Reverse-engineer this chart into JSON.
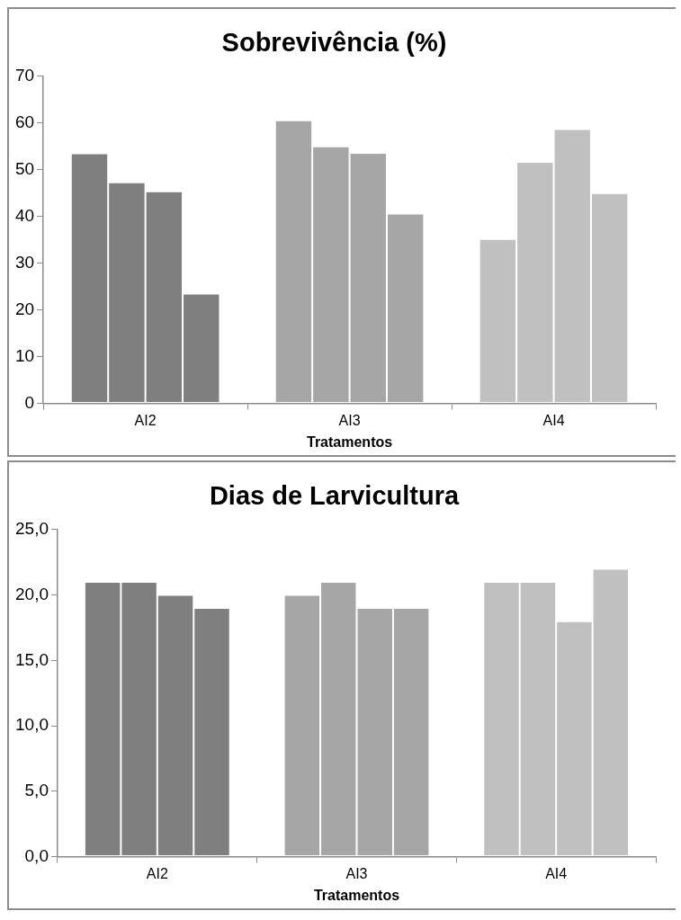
{
  "chart_data": [
    {
      "type": "bar",
      "title": "Sobrevivência (%)",
      "xlabel": "Tratamentos",
      "categories": [
        "AI2",
        "AI3",
        "AI4"
      ],
      "series": [
        {
          "colors": [
            "#7f7f7f",
            "#a6a6a6",
            "#c0c0c0"
          ],
          "values": [
            53.5,
            60.6,
            35.2
          ]
        },
        {
          "colors": [
            "#7f7f7f",
            "#a6a6a6",
            "#c0c0c0"
          ],
          "values": [
            47.3,
            55.0,
            51.7
          ]
        },
        {
          "colors": [
            "#7f7f7f",
            "#a6a6a6",
            "#c0c0c0"
          ],
          "values": [
            45.4,
            53.6,
            58.7
          ]
        },
        {
          "colors": [
            "#7f7f7f",
            "#a6a6a6",
            "#c0c0c0"
          ],
          "values": [
            23.5,
            40.6,
            45.0
          ]
        }
      ],
      "ylim": [
        0,
        70
      ],
      "yticks": [
        0,
        10,
        20,
        30,
        40,
        50,
        60,
        70
      ],
      "grid": false,
      "legend": false
    },
    {
      "type": "bar",
      "title": "Dias de Larvicultura",
      "xlabel": "Tratamentos",
      "categories": [
        "AI2",
        "AI3",
        "AI4"
      ],
      "series": [
        {
          "colors": [
            "#7f7f7f",
            "#a6a6a6",
            "#c0c0c0"
          ],
          "values": [
            21,
            20,
            21
          ]
        },
        {
          "colors": [
            "#7f7f7f",
            "#a6a6a6",
            "#c0c0c0"
          ],
          "values": [
            21,
            21,
            21
          ]
        },
        {
          "colors": [
            "#7f7f7f",
            "#a6a6a6",
            "#c0c0c0"
          ],
          "values": [
            20,
            19,
            18
          ]
        },
        {
          "colors": [
            "#7f7f7f",
            "#a6a6a6",
            "#c0c0c0"
          ],
          "values": [
            19,
            19,
            22
          ]
        }
      ],
      "ylim": [
        0,
        25
      ],
      "yticks": [
        {
          "value": 0,
          "label": "0,0"
        },
        {
          "value": 5,
          "label": "5,0"
        },
        {
          "value": 10,
          "label": "10,0"
        },
        {
          "value": 15,
          "label": "15,0"
        },
        {
          "value": 20,
          "label": "20,0"
        },
        {
          "value": 25,
          "label": "25,0"
        }
      ],
      "grid": false,
      "legend": false
    }
  ]
}
